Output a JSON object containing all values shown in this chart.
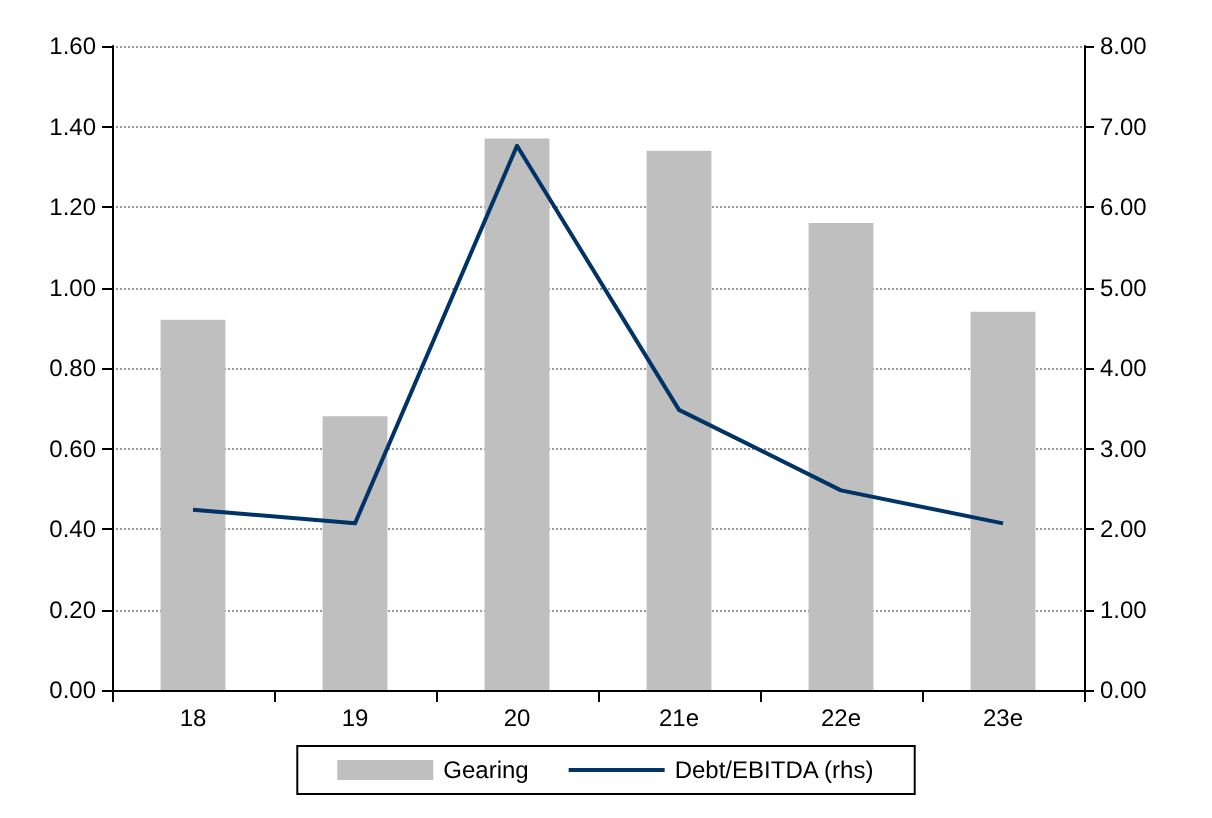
{
  "chart_data": {
    "type": "bar",
    "categories": [
      "18",
      "19",
      "20",
      "21e",
      "22e",
      "23e"
    ],
    "series": [
      {
        "name": "Gearing",
        "color": "#bfbfbf",
        "values": [
          0.92,
          0.68,
          1.37,
          1.34,
          1.16,
          0.94
        ]
      },
      {
        "name": "Debt/EBITDA (rhs)",
        "type": "line",
        "axis": "y2",
        "color": "#003366",
        "values": [
          2.24,
          2.07,
          6.76,
          3.48,
          2.48,
          2.07
        ]
      }
    ],
    "ylim": [
      0,
      1.6
    ],
    "yticks": [
      {
        "value": 0,
        "label": "0.00"
      },
      {
        "value": 0.2,
        "label": "0.20"
      },
      {
        "value": 0.4,
        "label": "0.40"
      },
      {
        "value": 0.6,
        "label": "0.60"
      },
      {
        "value": 0.8,
        "label": "0.80"
      },
      {
        "value": 1,
        "label": "1.00"
      },
      {
        "value": 1.2,
        "label": "1.20"
      },
      {
        "value": 1.4,
        "label": "1.40"
      },
      {
        "value": 1.6,
        "label": "1.60"
      }
    ],
    "y2lim": [
      0,
      8
    ],
    "y2ticks": [
      {
        "value": 0,
        "label": "0.00"
      },
      {
        "value": 1,
        "label": "1.00"
      },
      {
        "value": 2,
        "label": "2.00"
      },
      {
        "value": 3,
        "label": "3.00"
      },
      {
        "value": 4,
        "label": "4.00"
      },
      {
        "value": 5,
        "label": "5.00"
      },
      {
        "value": 6,
        "label": "6.00"
      },
      {
        "value": 7,
        "label": "7.00"
      },
      {
        "value": 8,
        "label": "8.00"
      }
    ],
    "grid": "y",
    "legend": "bottom",
    "marker": "none",
    "line_style": "solid"
  }
}
